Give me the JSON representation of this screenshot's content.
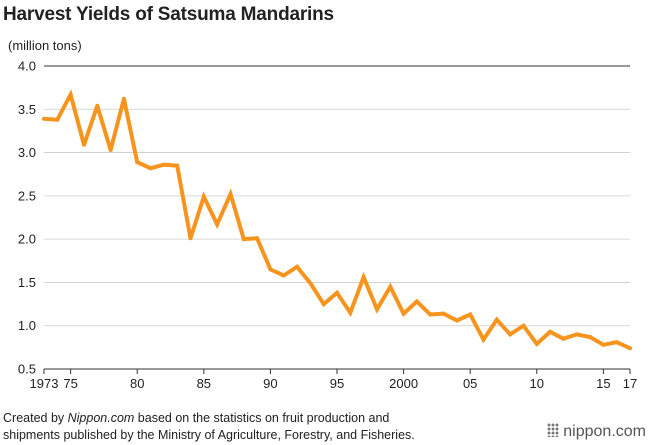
{
  "title": "Harvest Yields of Satsuma Mandarins",
  "unit_label": "(million tons)",
  "footer": {
    "prefix": "Created by ",
    "source": "Nippon.com",
    "line1_rest": " based on the statistics on fruit production and",
    "line2": "shipments published by the Ministry of Agriculture, Forestry, and Fisheries."
  },
  "brand": "nippon.com",
  "colors": {
    "line": "#f7941d",
    "grid": "#cccccc",
    "axis": "#333333"
  },
  "chart_data": {
    "type": "line",
    "title": "Harvest Yields of Satsuma Mandarins",
    "ylabel": "(million tons)",
    "xlabel": "",
    "ylim": [
      0.5,
      4.0
    ],
    "yticks": [
      "0.5",
      "1.0",
      "1.5",
      "2.0",
      "2.5",
      "3.0",
      "3.5",
      "4.0"
    ],
    "xlim": [
      1973,
      2017
    ],
    "xticks": [
      {
        "year": 1973,
        "label": "1973"
      },
      {
        "year": 1975,
        "label": "75"
      },
      {
        "year": 1980,
        "label": "80"
      },
      {
        "year": 1985,
        "label": "85"
      },
      {
        "year": 1990,
        "label": "90"
      },
      {
        "year": 1995,
        "label": "95"
      },
      {
        "year": 2000,
        "label": "2000"
      },
      {
        "year": 2005,
        "label": "05"
      },
      {
        "year": 2010,
        "label": "10"
      },
      {
        "year": 2015,
        "label": "15"
      },
      {
        "year": 2017,
        "label": "17"
      }
    ],
    "grid": true,
    "series": [
      {
        "x": [
          1973,
          1974,
          1975,
          1976,
          1977,
          1978,
          1979,
          1980,
          1981,
          1982,
          1983,
          1984,
          1985,
          1986,
          1987,
          1988,
          1989,
          1990,
          1991,
          1992,
          1993,
          1994,
          1995,
          1996,
          1997,
          1998,
          1999,
          2000,
          2001,
          2002,
          2003,
          2004,
          2005,
          2006,
          2007,
          2008,
          2009,
          2010,
          2011,
          2012,
          2013,
          2014,
          2015,
          2016,
          2017
        ],
        "values": [
          3.39,
          3.38,
          3.67,
          3.09,
          3.54,
          3.03,
          3.62,
          2.89,
          2.82,
          2.86,
          2.85,
          2.01,
          2.49,
          2.17,
          2.52,
          2.0,
          2.01,
          1.65,
          1.58,
          1.68,
          1.49,
          1.25,
          1.38,
          1.15,
          1.56,
          1.19,
          1.45,
          1.14,
          1.28,
          1.13,
          1.14,
          1.06,
          1.13,
          0.84,
          1.07,
          0.9,
          1.0,
          0.79,
          0.93,
          0.85,
          0.9,
          0.87,
          0.78,
          0.81,
          0.74
        ]
      }
    ]
  }
}
